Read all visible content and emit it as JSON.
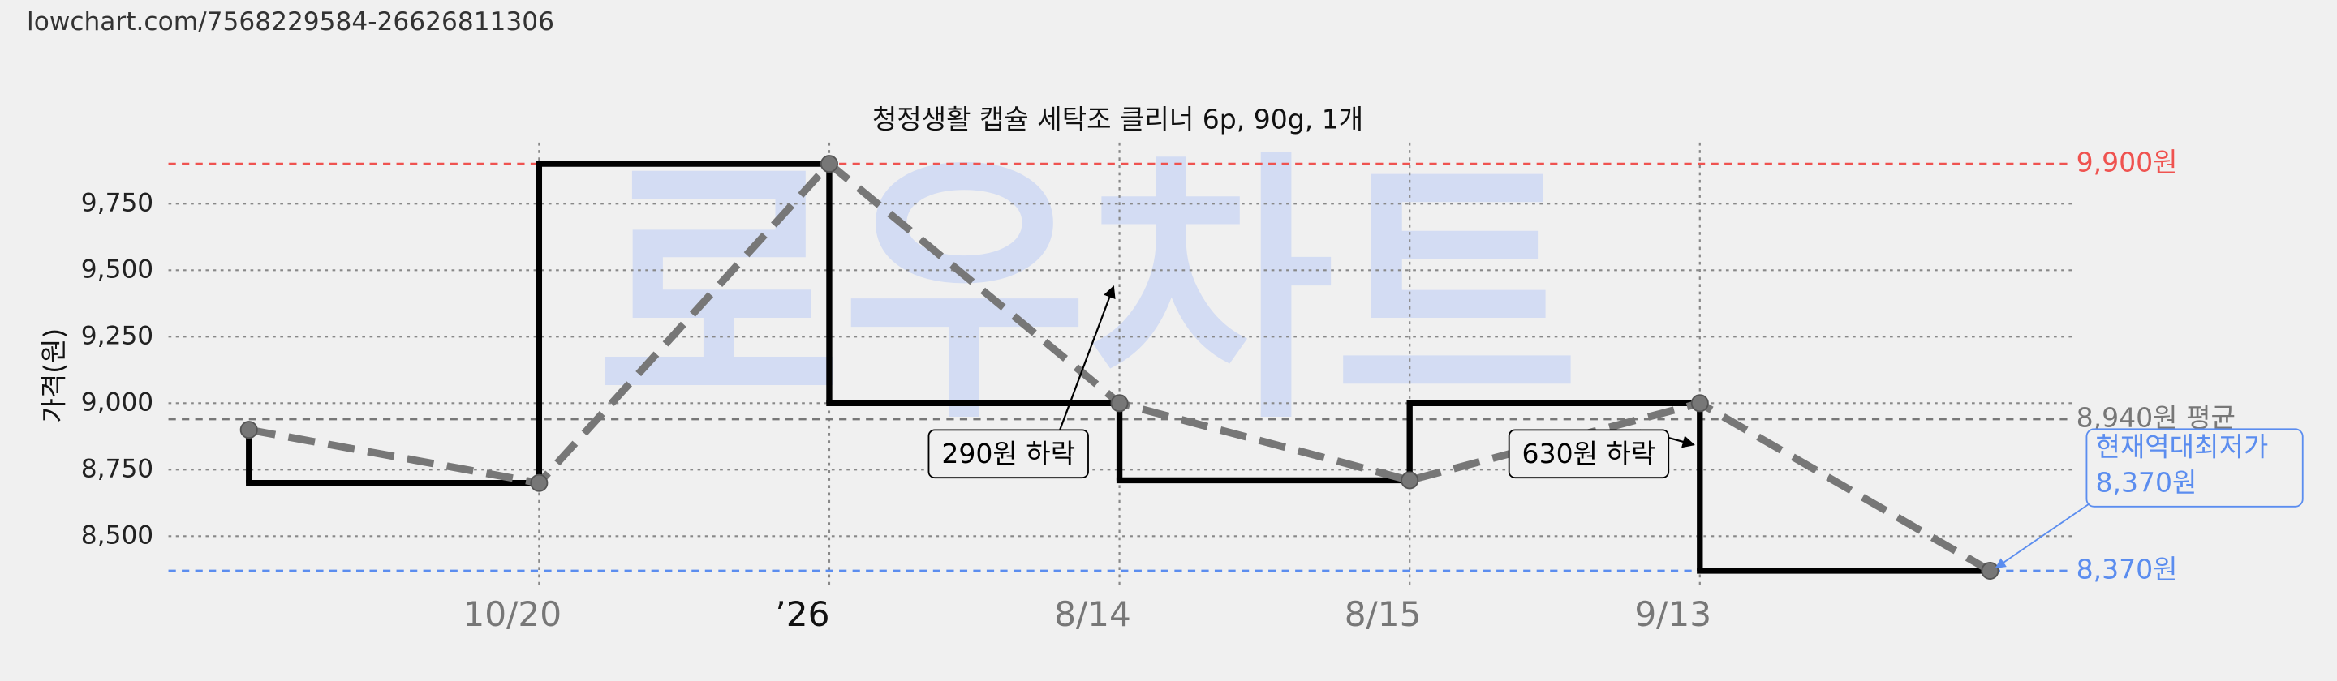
{
  "url": "lowchart.com/7568229584-26626811306",
  "watermark": "로우차트",
  "chart_data": {
    "type": "price-history",
    "title": "청정생활 캡슐 세탁조 클리너 6p, 90g, 1개",
    "y_label": "가격(원)",
    "categories": [
      null,
      "10/20",
      "’26",
      "8/14",
      "8/15",
      "9/13",
      null
    ],
    "values": [
      8900,
      8700,
      9900,
      9000,
      8710,
      9000,
      8370
    ],
    "line_color": "#000000",
    "dash_color": "#777777",
    "ylim": [
      8300,
      9980
    ],
    "yticks": [
      {
        "value": 8500,
        "label": "8,500"
      },
      {
        "value": 8750,
        "label": "8,750"
      },
      {
        "value": 9000,
        "label": "9,000"
      },
      {
        "value": 9250,
        "label": "9,250"
      },
      {
        "value": 9500,
        "label": "9,500"
      },
      {
        "value": 9750,
        "label": "9,750"
      }
    ],
    "grid": true,
    "reference_lines": [
      {
        "value": 9900,
        "label": "9,900원",
        "color": "#ef5350"
      },
      {
        "value": 8940,
        "label": "8,940원 평균",
        "color": "#777777"
      },
      {
        "value": 8370,
        "label": "8,370원",
        "color": "#5b8def"
      }
    ],
    "annotations": [
      {
        "text": "290원 하락",
        "point": 3
      },
      {
        "text": "630원 하락",
        "point": 5
      },
      {
        "text": "현재역대최저가",
        "text2": "8,370원",
        "point": 6
      }
    ]
  }
}
